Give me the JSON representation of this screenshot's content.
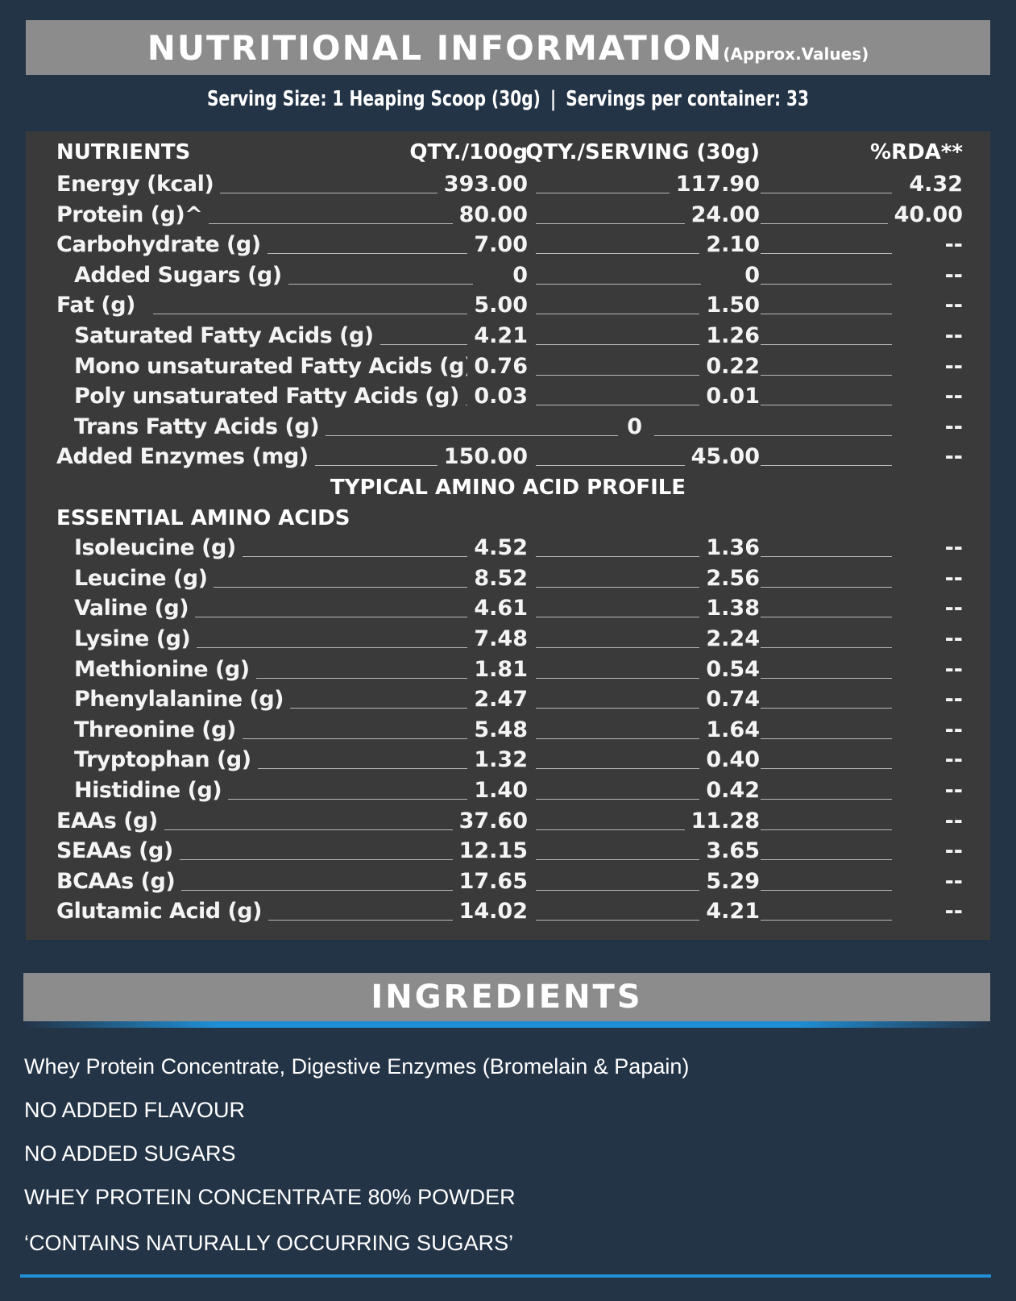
{
  "header": {
    "title": "NUTRITIONAL INFORMATION",
    "subtitle": "(Approx.Values)"
  },
  "serving": {
    "size": "Serving Size: 1 Heaping Scoop (30g)",
    "separator": "|",
    "per_container": "Servings per container: 33"
  },
  "table": {
    "columns": [
      "NUTRIENTS",
      "QTY./100g",
      "QTY./SERVING (30g)",
      "%RDA**"
    ],
    "nutrients": [
      {
        "name": "Energy (kcal)",
        "per100": "393.00",
        "serving": "117.90",
        "rda": "4.32"
      },
      {
        "name": "Protein (g)^",
        "per100": "80.00",
        "serving": "24.00",
        "rda": "40.00"
      },
      {
        "name": "Carbohydrate (g)",
        "per100": "7.00",
        "serving": "2.10",
        "rda": "--"
      },
      {
        "name": "Added Sugars (g)",
        "per100": "0",
        "serving": "0",
        "rda": "--"
      },
      {
        "name": "Fat (g)",
        "per100": "5.00",
        "serving": "1.50",
        "rda": "--"
      },
      {
        "name": "Saturated Fatty Acids (g)",
        "per100": "4.21",
        "serving": "1.26",
        "rda": "--"
      },
      {
        "name": "Mono unsaturated Fatty Acids (g)",
        "per100": "0.76",
        "serving": "0.22",
        "rda": "--"
      },
      {
        "name": "Poly unsaturated Fatty Acids (g)",
        "per100": "0.03",
        "serving": "0.01",
        "rda": "--"
      },
      {
        "name": "Trans Fatty Acids (g)",
        "combined": "0",
        "rda": "--"
      },
      {
        "name": "Added Enzymes (mg)",
        "per100": "150.00",
        "serving": "45.00",
        "rda": "--"
      }
    ],
    "amino_title": "TYPICAL AMINO ACID PROFILE",
    "essential_title": "ESSENTIAL AMINO ACIDS",
    "amino": [
      {
        "name": "Isoleucine (g)",
        "per100": "4.52",
        "serving": "1.36",
        "rda": "--"
      },
      {
        "name": "Leucine (g)",
        "per100": "8.52",
        "serving": "2.56",
        "rda": "--"
      },
      {
        "name": "Valine (g)",
        "per100": "4.61",
        "serving": "1.38",
        "rda": "--"
      },
      {
        "name": "Lysine (g)",
        "per100": "7.48",
        "serving": "2.24",
        "rda": "--"
      },
      {
        "name": "Methionine (g)",
        "per100": "1.81",
        "serving": "0.54",
        "rda": "--"
      },
      {
        "name": "Phenylalanine (g)",
        "per100": "2.47",
        "serving": "0.74",
        "rda": "--"
      },
      {
        "name": "Threonine (g)",
        "per100": "5.48",
        "serving": "1.64",
        "rda": "--"
      },
      {
        "name": "Tryptophan (g)",
        "per100": "1.32",
        "serving": "0.40",
        "rda": "--"
      },
      {
        "name": "Histidine (g)",
        "per100": "1.40",
        "serving": "0.42",
        "rda": "--"
      },
      {
        "name": "EAAs (g)",
        "per100": "37.60",
        "serving": "11.28",
        "rda": "--"
      },
      {
        "name": "SEAAs (g)",
        "per100": "12.15",
        "serving": "3.65",
        "rda": "--"
      },
      {
        "name": "BCAAs (g)",
        "per100": "17.65",
        "serving": "5.29",
        "rda": "--"
      },
      {
        "name": "Glutamic Acid (g)",
        "per100": "14.02",
        "serving": "4.21",
        "rda": "--"
      }
    ]
  },
  "ingredients": {
    "title": "INGREDIENTS",
    "lines": [
      "Whey Protein Concentrate, Digestive Enzymes (Bromelain & Papain)",
      "NO ADDED FLAVOUR",
      "NO ADDED SUGARS",
      "WHEY PROTEIN CONCENTRATE 80% POWDER",
      "‘CONTAINS NATURALLY OCCURRING SUGARS’"
    ]
  },
  "colors": {
    "background": "#243447",
    "panel": "#3a3a3a",
    "bar": "#8c8c8c",
    "accent": "#1f8fd6"
  }
}
